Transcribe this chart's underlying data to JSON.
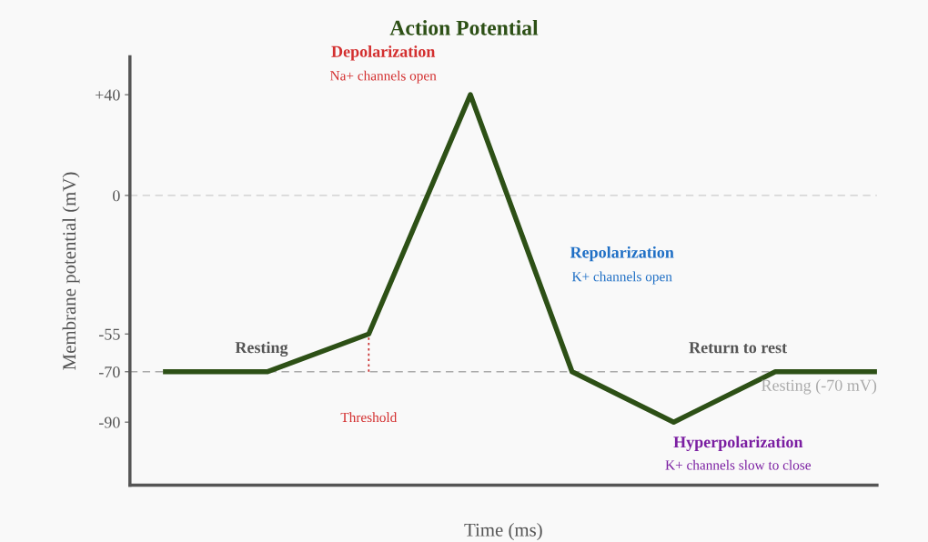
{
  "chart_data": {
    "type": "line",
    "title": "Action Potential",
    "xlabel": "Time (ms)",
    "ylabel": "Membrane potential (mV)",
    "categories": [
      null,
      null,
      null,
      null,
      null,
      null,
      null,
      null
    ],
    "series": [
      {
        "color": "#2d5016",
        "values": [
          -70,
          -70,
          -55,
          40,
          -70,
          -90,
          -70,
          -70
        ],
        "errors": [
          null,
          null,
          [
            -70,
            -55
          ],
          null,
          null,
          null,
          null,
          null
        ]
      }
    ],
    "ylim": [
      -115,
      55
    ],
    "yticks": [
      {
        "value": 40,
        "label": "+40"
      },
      0,
      -55,
      -70,
      -90
    ],
    "tick_labels": "y",
    "grid": false,
    "ref_lines": [
      {
        "axis": "y",
        "value": 0,
        "color": "#cccccc",
        "line_style": "dashed"
      },
      {
        "axis": "y",
        "value": -70,
        "label": "Resting (-70 mV)",
        "color": "#aaaaaa",
        "line_style": "dashed"
      }
    ],
    "annotations": [
      "Depolarization",
      "Na+ channels open",
      "Repolarization",
      "K+ channels open",
      "Resting",
      "Threshold",
      "Hyperpolarization",
      "K+ channels slow to close",
      "Return to rest"
    ]
  }
}
